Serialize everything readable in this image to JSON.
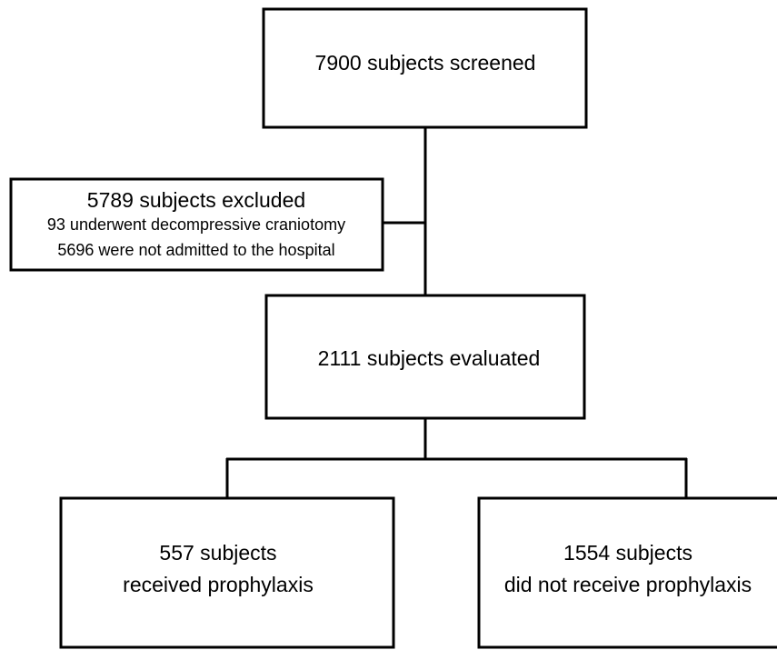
{
  "nodes": [
    {
      "lines": [
        "7900 subjects screened"
      ]
    },
    {
      "lines": [
        "5789 subjects excluded",
        "93 underwent decompressive craniotomy",
        "5696 were not admitted to the hospital"
      ]
    },
    {
      "lines": [
        "2111 subjects evaluated"
      ]
    },
    {
      "lines": [
        "557 subjects",
        "received prophylaxis"
      ]
    },
    {
      "lines": [
        "1554 subjects",
        "did not receive prophylaxis"
      ]
    }
  ]
}
